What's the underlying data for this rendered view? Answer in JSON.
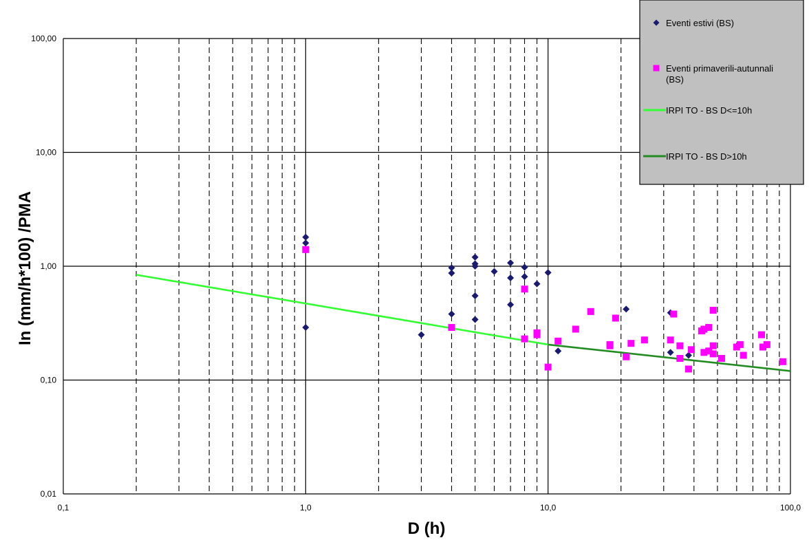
{
  "chart_data": {
    "type": "scatter",
    "xlabel": "D (h)",
    "ylabel": "In (mm/h*100) /PMA",
    "x_scale": "log",
    "y_scale": "log",
    "xlim": [
      0.1,
      100
    ],
    "ylim": [
      0.01,
      100
    ],
    "x_ticks": [
      {
        "value": 0.1,
        "label": "0,1"
      },
      {
        "value": 1,
        "label": "1,0"
      },
      {
        "value": 10,
        "label": "10,0"
      },
      {
        "value": 100,
        "label": "100,0"
      }
    ],
    "y_ticks": [
      {
        "value": 0.01,
        "label": "0,01"
      },
      {
        "value": 0.1,
        "label": "0,10"
      },
      {
        "value": 1,
        "label": "1,00"
      },
      {
        "value": 10,
        "label": "10,00"
      },
      {
        "value": 100,
        "label": "100,00"
      }
    ],
    "grid": "major solid, minor dashed vertical",
    "legend_position": "top-right",
    "colors": {
      "summer": "#1a1a6e",
      "spring_autumn": "#ff00ff",
      "line_short": "#33ff33",
      "line_long": "#228b22",
      "legend_bg": "#c0c0c0"
    },
    "series": [
      {
        "name": "Eventi estivi (BS)",
        "kind": "points",
        "marker": "diamond",
        "points": [
          [
            1,
            1.8
          ],
          [
            1,
            1.6
          ],
          [
            1,
            0.29
          ],
          [
            3,
            0.25
          ],
          [
            4,
            0.97
          ],
          [
            4,
            0.87
          ],
          [
            4,
            0.38
          ],
          [
            5,
            1.2
          ],
          [
            5,
            1.05
          ],
          [
            5,
            1.0
          ],
          [
            5,
            0.55
          ],
          [
            5,
            0.34
          ],
          [
            6,
            0.9
          ],
          [
            7,
            1.07
          ],
          [
            7,
            0.79
          ],
          [
            7,
            0.46
          ],
          [
            8,
            0.98
          ],
          [
            8,
            0.81
          ],
          [
            9,
            0.7
          ],
          [
            10,
            0.88
          ],
          [
            11,
            0.18
          ],
          [
            21,
            0.42
          ],
          [
            32,
            0.39
          ],
          [
            32,
            0.175
          ],
          [
            38,
            0.165
          ]
        ]
      },
      {
        "name": "Eventi primaverili-autunnali (BS)",
        "kind": "points",
        "marker": "square",
        "points": [
          [
            1,
            1.4
          ],
          [
            4,
            0.29
          ],
          [
            8,
            0.63
          ],
          [
            8,
            0.23
          ],
          [
            9,
            0.26
          ],
          [
            9,
            0.25
          ],
          [
            10,
            0.13
          ],
          [
            11,
            0.22
          ],
          [
            13,
            0.28
          ],
          [
            15,
            0.4
          ],
          [
            18,
            0.2
          ],
          [
            18,
            0.205
          ],
          [
            19,
            0.35
          ],
          [
            21,
            0.16
          ],
          [
            22,
            0.21
          ],
          [
            25,
            0.225
          ],
          [
            32,
            0.225
          ],
          [
            33,
            0.38
          ],
          [
            35,
            0.2
          ],
          [
            35,
            0.155
          ],
          [
            38,
            0.125
          ],
          [
            39,
            0.185
          ],
          [
            43,
            0.27
          ],
          [
            44,
            0.28
          ],
          [
            44,
            0.175
          ],
          [
            46,
            0.29
          ],
          [
            46,
            0.18
          ],
          [
            48,
            0.41
          ],
          [
            48,
            0.2
          ],
          [
            48,
            0.17
          ],
          [
            52,
            0.155
          ],
          [
            60,
            0.195
          ],
          [
            62,
            0.205
          ],
          [
            64,
            0.165
          ],
          [
            76,
            0.25
          ],
          [
            77,
            0.195
          ],
          [
            80,
            0.205
          ],
          [
            93,
            0.145
          ]
        ]
      },
      {
        "name": "IRPI TO - BS D<=10h",
        "kind": "line",
        "points": [
          [
            0.2,
            0.84
          ],
          [
            10,
            0.205
          ]
        ]
      },
      {
        "name": "IRPI TO - BS D>10h",
        "kind": "line",
        "points": [
          [
            10,
            0.205
          ],
          [
            100,
            0.12
          ]
        ]
      }
    ]
  }
}
